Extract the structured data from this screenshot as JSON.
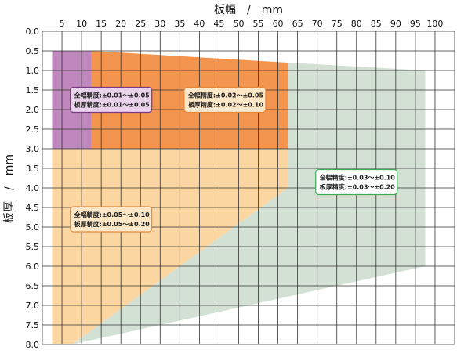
{
  "chart_data": {
    "type": "area",
    "xlabel": "板幅　/　mm",
    "ylabel": "板厚　/　mm",
    "x_ticks": [
      "5",
      "10",
      "15",
      "20",
      "25",
      "30",
      "35",
      "40",
      "45",
      "50",
      "55",
      "60",
      "65",
      "70",
      "75",
      "80",
      "85",
      "90",
      "95",
      "100"
    ],
    "y_ticks": [
      "0.0",
      "0.5",
      "1.0",
      "1.5",
      "2.0",
      "2.5",
      "3.0",
      "3.5",
      "4.0",
      "4.5",
      "5.0",
      "5.5",
      "6.0",
      "6.5",
      "7.0",
      "7.5",
      "8.0"
    ],
    "xlim": [
      5,
      100
    ],
    "ylim": [
      0.0,
      8.0
    ],
    "y_inverted": true,
    "grid": true,
    "colors": {
      "green": "#d3e1d5",
      "light_orange": "#fcd6a1",
      "orange": "#f3954f",
      "purple": "#bf87bd",
      "purple_border": "#7a3a85",
      "orange_border": "#e4883c",
      "green_border": "#3cad52"
    },
    "regions": [
      {
        "color_key": "green",
        "polygon": [
          [
            65,
            0.8
          ],
          [
            100,
            1.0
          ],
          [
            100,
            6.0
          ],
          [
            10,
            8.0
          ],
          [
            65,
            4.0
          ]
        ],
        "annotation": {
          "lines": [
            "全幅精度:±0.03～±0.10",
            "板厚精度:±0.03～±0.20"
          ],
          "at": [
            82.5,
            3.85
          ],
          "border_key": "green_border"
        }
      },
      {
        "color_key": "light_orange",
        "polygon": [
          [
            5,
            3.0
          ],
          [
            65,
            3.0
          ],
          [
            65,
            4.0
          ],
          [
            10,
            8.0
          ],
          [
            5,
            8.0
          ]
        ],
        "annotation": {
          "lines": [
            "全幅精度:±0.05～±0.10",
            "板厚精度:±0.05～±0.20"
          ],
          "at": [
            20,
            4.8
          ],
          "border_key": "orange_border"
        }
      },
      {
        "color_key": "orange",
        "polygon": [
          [
            15,
            0.5
          ],
          [
            65,
            0.8
          ],
          [
            65,
            3.0
          ],
          [
            15,
            3.0
          ]
        ],
        "annotation": {
          "lines": [
            "全幅精度:±0.02～±0.05",
            "板厚精度:±0.02～±0.10"
          ],
          "at": [
            49,
            1.75
          ],
          "border_key": "orange_border"
        }
      },
      {
        "color_key": "purple",
        "polygon": [
          [
            5,
            0.5
          ],
          [
            15,
            0.5
          ],
          [
            15,
            3.0
          ],
          [
            5,
            3.0
          ]
        ],
        "annotation": {
          "lines": [
            "全幅精度:±0.01～±0.05",
            "板厚精度:±0.01～±0.05"
          ],
          "at": [
            20,
            1.75
          ],
          "border_key": "purple_border"
        }
      }
    ]
  }
}
